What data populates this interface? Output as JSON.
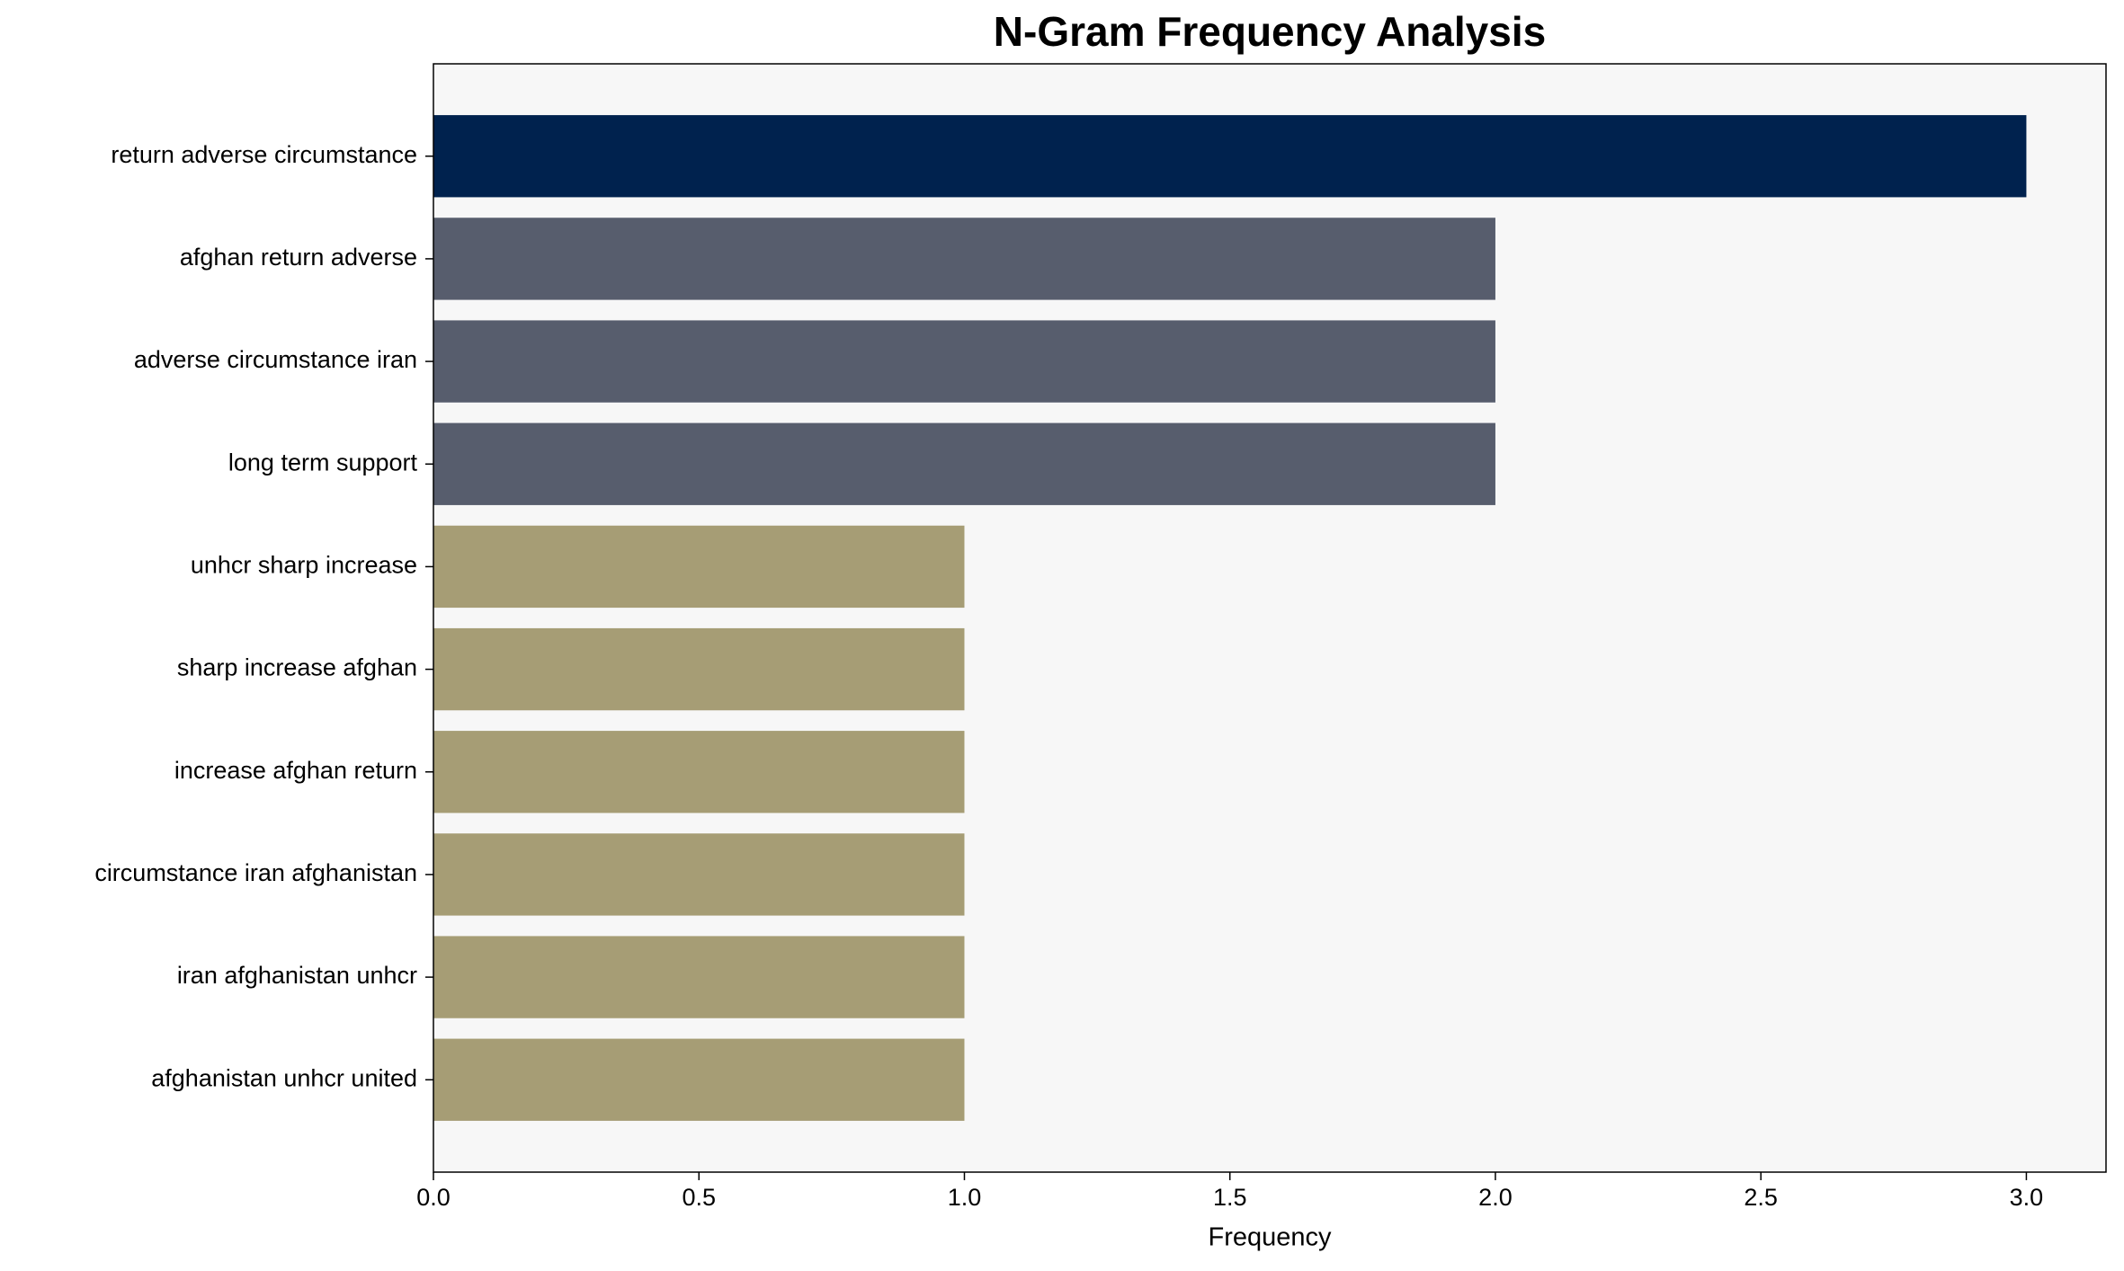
{
  "chart_data": {
    "type": "barh",
    "title": "N-Gram Frequency Analysis",
    "xlabel": "Frequency",
    "categories": [
      "return adverse circumstance",
      "afghan return adverse",
      "adverse circumstance iran",
      "long term support",
      "unhcr sharp increase",
      "sharp increase afghan",
      "increase afghan return",
      "circumstance iran afghanistan",
      "iran afghanistan unhcr",
      "afghanistan unhcr united"
    ],
    "values": [
      3,
      2,
      2,
      2,
      1,
      1,
      1,
      1,
      1,
      1
    ],
    "colors": [
      "#00224e",
      "#575d6d",
      "#575d6d",
      "#575d6d",
      "#a69d75",
      "#a69d75",
      "#a69d75",
      "#a69d75",
      "#a69d75",
      "#a69d75"
    ],
    "xlim": [
      0,
      3.15
    ],
    "xticks": [
      {
        "value": 0,
        "label": "0.0"
      },
      {
        "value": 0.5,
        "label": "0.5"
      },
      {
        "value": 1,
        "label": "1.0"
      },
      {
        "value": 1.5,
        "label": "1.5"
      },
      {
        "value": 2,
        "label": "2.0"
      },
      {
        "value": 2.5,
        "label": "2.5"
      },
      {
        "value": 3,
        "label": "3.0"
      }
    ],
    "background": "#f7f7f7"
  }
}
